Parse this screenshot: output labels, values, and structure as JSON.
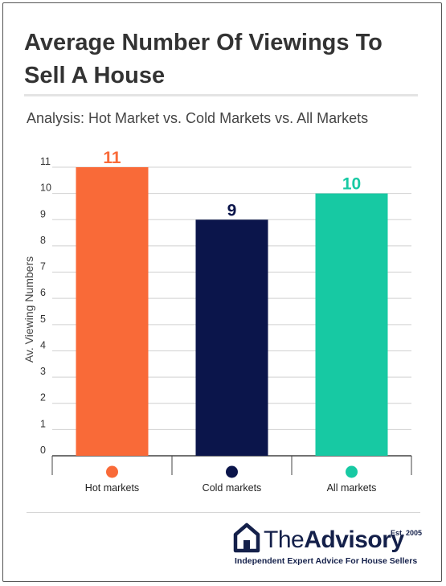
{
  "page": {
    "title": "Average Number Of Viewings To Sell A House",
    "subtitle": "Analysis: Hot Market vs. Cold Markets vs. All Markets"
  },
  "chart_data": {
    "type": "bar",
    "categories": [
      "Hot markets",
      "Cold markets",
      "All markets"
    ],
    "values": [
      11,
      9,
      10
    ],
    "colors": [
      "#f96a38",
      "#0b154b",
      "#17c9a3"
    ],
    "data_labels": [
      "11",
      "9",
      "10"
    ],
    "ylabel": "Av. Viewing Numbers",
    "xlabel": "",
    "ylim": [
      0,
      11
    ],
    "yticks": [
      "0",
      "1",
      "2",
      "3",
      "4",
      "5",
      "6",
      "7",
      "8",
      "9",
      "10",
      "11"
    ],
    "grid": true,
    "legend": "below-axis-dots"
  },
  "brand": {
    "name_regular": "The",
    "name_bold": "Advisory",
    "est": "Est. 2005",
    "tagline": "Independent Expert Advice For House Sellers",
    "icon": "house-icon",
    "color": "#14204a"
  }
}
